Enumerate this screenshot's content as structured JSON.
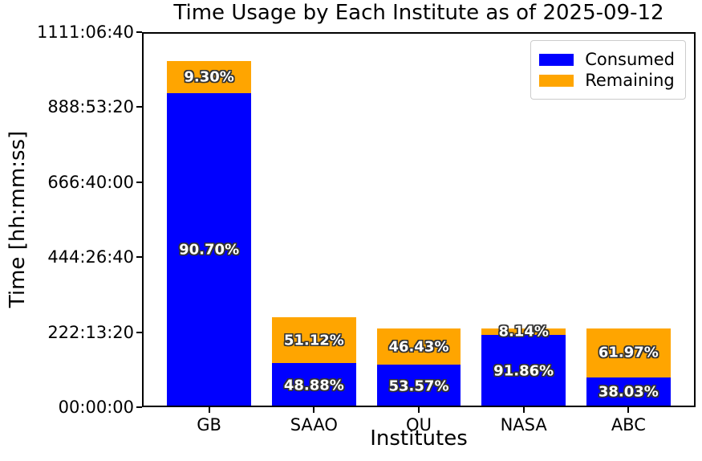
{
  "figure": {
    "background": "#ffffff"
  },
  "chart_data": {
    "type": "bar",
    "stacked": true,
    "title": "Time Usage by Each Institute as of 2025-09-12",
    "xlabel": "Institutes",
    "ylabel": "Time [hh:mm:ss]",
    "categories": [
      "GB",
      "SAAO",
      "OU",
      "NASA",
      "ABC"
    ],
    "series": [
      {
        "name": "Consumed",
        "color": "#0000ff",
        "values_seconds": [
          3352272,
          469248,
          450000,
          771600,
          319452
        ],
        "percent_labels": [
          "90.70%",
          "48.88%",
          "53.57%",
          "91.86%",
          "38.03%"
        ]
      },
      {
        "name": "Remaining",
        "color": "#ffa500",
        "values_seconds": [
          343728,
          490752,
          390000,
          68400,
          520548
        ],
        "percent_labels": [
          "9.30%",
          "51.12%",
          "46.43%",
          "8.14%",
          "61.97%"
        ]
      }
    ],
    "bar_totals_seconds": [
      3696000,
      960000,
      840000,
      840000,
      840000
    ],
    "ylim_seconds": [
      0,
      4000000
    ],
    "yticks": [
      {
        "seconds": 0,
        "label": "00:00:00"
      },
      {
        "seconds": 800000,
        "label": "222:13:20"
      },
      {
        "seconds": 1600000,
        "label": "444:26:40"
      },
      {
        "seconds": 2400000,
        "label": "666:40:00"
      },
      {
        "seconds": 3200000,
        "label": "888:53:20"
      },
      {
        "seconds": 4000000,
        "label": "1111:06:40"
      }
    ],
    "grid": false,
    "legend": {
      "position": "upper right",
      "entries": [
        "Consumed",
        "Remaining"
      ]
    },
    "label_text_color": "#ffffff",
    "label_outline_color": "#333333"
  }
}
